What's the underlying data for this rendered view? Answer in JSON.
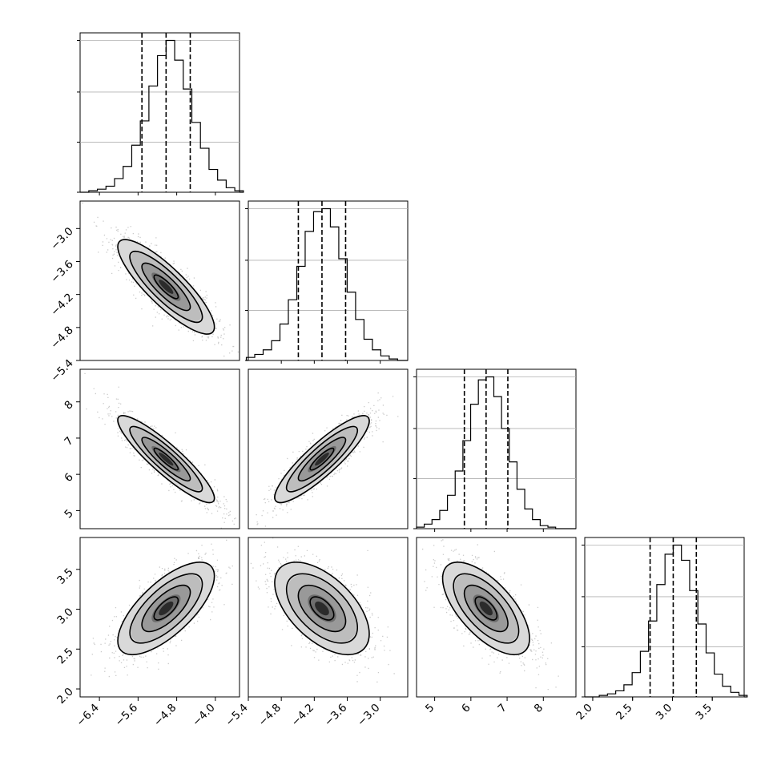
{
  "chart_data": {
    "type": "corner",
    "parameters": 4,
    "quantiles": [
      0.16,
      0.5,
      0.84
    ],
    "grid": true,
    "params": [
      {
        "range": [
          -6.8,
          -3.5
        ],
        "mean": -5.02,
        "std": 0.5,
        "ticks": [
          -6.4,
          -5.6,
          -4.8,
          -4.0
        ],
        "tick_labels": [
          "−6.4",
          "−5.6",
          "−4.8",
          "−4.0"
        ],
        "quantile_values": [
          -5.52,
          -5.02,
          -4.52
        ],
        "hist_counts": [
          1,
          2,
          4,
          9,
          17,
          31,
          47,
          70,
          90,
          100,
          87,
          68,
          46,
          29,
          15,
          8,
          3,
          1
        ]
      },
      {
        "range": [
          -5.4,
          -2.5
        ],
        "mean": -4.06,
        "std": 0.43,
        "ticks": [
          -5.4,
          -4.8,
          -4.2,
          -3.6,
          -3.0
        ],
        "tick_labels": [
          "−5.4",
          "−4.8",
          "−4.2",
          "−3.6",
          "−3.0"
        ],
        "quantile_values": [
          -4.49,
          -4.06,
          -3.63
        ],
        "hist_counts": [
          2,
          4,
          7,
          13,
          24,
          40,
          62,
          85,
          98,
          100,
          88,
          67,
          45,
          27,
          14,
          7,
          3,
          1
        ]
      },
      {
        "range": [
          4.5,
          8.9
        ],
        "mean": 6.42,
        "std": 0.6,
        "ticks": [
          5,
          6,
          7,
          8
        ],
        "tick_labels": [
          "5",
          "6",
          "7",
          "8"
        ],
        "yticks": [
          5,
          6,
          7,
          8
        ],
        "ytick_labels": [
          "5",
          "6",
          "7",
          "8"
        ],
        "quantile_values": [
          5.82,
          6.42,
          7.02
        ],
        "hist_counts": [
          1,
          3,
          6,
          12,
          22,
          38,
          58,
          82,
          98,
          100,
          87,
          66,
          44,
          26,
          13,
          6,
          2,
          1
        ]
      },
      {
        "range": [
          1.9,
          3.9
        ],
        "mean": 3.01,
        "std": 0.29,
        "ticks": [
          2.0,
          2.5,
          3.0,
          3.5
        ],
        "tick_labels": [
          "2.0",
          "2.5",
          "3.0",
          "3.5"
        ],
        "quantile_values": [
          2.72,
          3.01,
          3.3
        ],
        "hist_counts": [
          1,
          2,
          4,
          8,
          16,
          30,
          50,
          74,
          94,
          100,
          90,
          70,
          48,
          29,
          15,
          7,
          3,
          1
        ]
      }
    ],
    "correlations": [
      {
        "pair": [
          0,
          1
        ],
        "rho": -0.85
      },
      {
        "pair": [
          0,
          2
        ],
        "rho": -0.9
      },
      {
        "pair": [
          1,
          2
        ],
        "rho": 0.88
      },
      {
        "pair": [
          0,
          3
        ],
        "rho": 0.7
      },
      {
        "pair": [
          1,
          3
        ],
        "rho": -0.55
      },
      {
        "pair": [
          2,
          3
        ],
        "rho": -0.65
      }
    ],
    "row_tick_overrides": {
      "1": {
        "ticks": [
          -5.4,
          -4.8,
          -4.2,
          -3.6,
          -3.0
        ],
        "labels": [
          "−5.4",
          "−4.8",
          "−4.2",
          "−3.6",
          "−3.0"
        ]
      },
      "2": {
        "ticks": [
          5,
          6,
          7,
          8
        ],
        "labels": [
          "5",
          "6",
          "7",
          "8"
        ]
      },
      "3": {
        "ticks": [
          2.0,
          2.5,
          3.0,
          3.5
        ],
        "labels": [
          "2.0",
          "2.5",
          "3.0",
          "3.5"
        ]
      }
    },
    "colors": {
      "line": "#000000",
      "grid": "#b0b0b0",
      "points": "#8a8a8a"
    }
  }
}
